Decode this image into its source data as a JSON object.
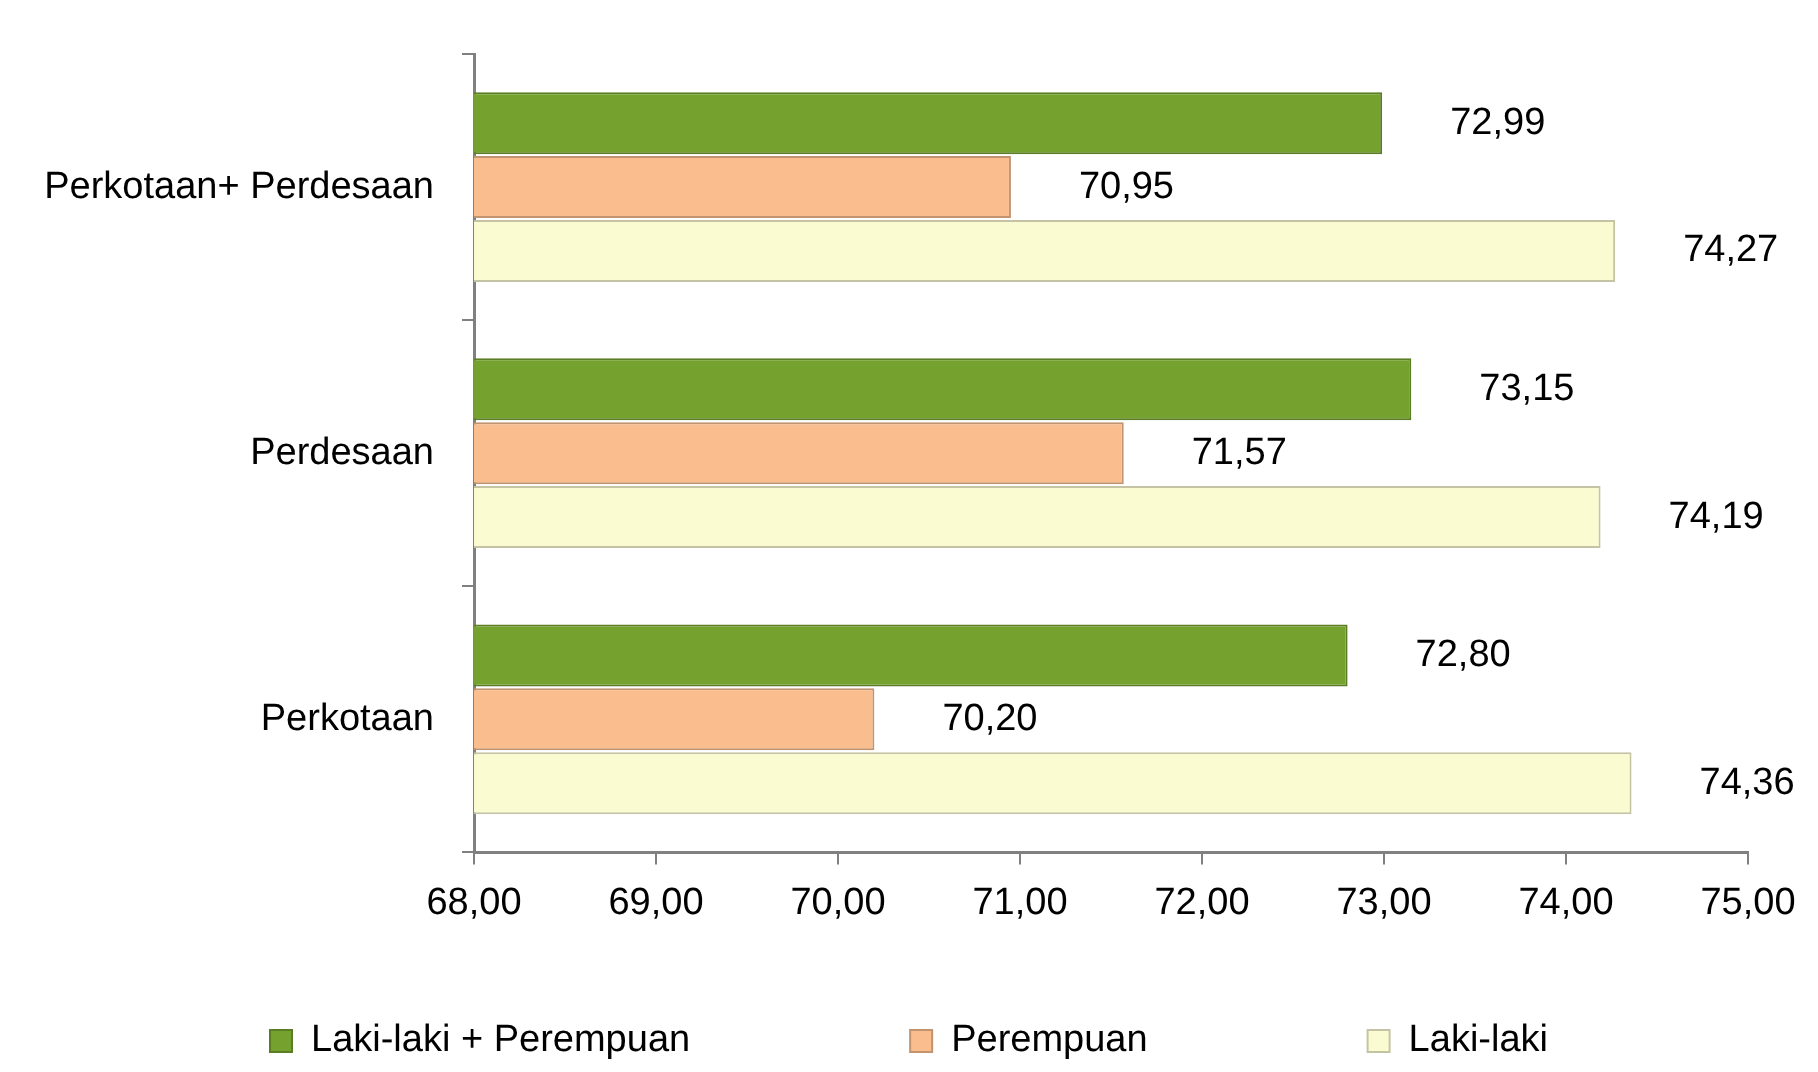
{
  "chart_data": {
    "type": "bar",
    "orientation": "horizontal",
    "categories": [
      "Perkotaan+ Perdesaan",
      "Perdesaan",
      "Perkotaan"
    ],
    "series": [
      {
        "name": "Laki-laki + Perempuan",
        "color": "#75a12f",
        "values": [
          72.99,
          73.15,
          72.8
        ],
        "value_labels": [
          "72,99",
          "73,15",
          "72,80"
        ]
      },
      {
        "name": "Perempuan",
        "color": "#f9bd8e",
        "values": [
          70.95,
          71.57,
          70.2
        ],
        "value_labels": [
          "70,95",
          "71,57",
          "70,20"
        ]
      },
      {
        "name": "Laki-laki",
        "color": "#fbfbd2",
        "values": [
          74.27,
          74.19,
          74.36
        ],
        "value_labels": [
          "74,27",
          "74,19",
          "74,36"
        ]
      }
    ],
    "xlim": [
      68,
      75
    ],
    "xticks": [
      {
        "value": 68,
        "label": "68,00"
      },
      {
        "value": 69,
        "label": "69,00"
      },
      {
        "value": 70,
        "label": "70,00"
      },
      {
        "value": 71,
        "label": "71,00"
      },
      {
        "value": 72,
        "label": "72,00"
      },
      {
        "value": 73,
        "label": "73,00"
      },
      {
        "value": 74,
        "label": "74,00"
      },
      {
        "value": 75,
        "label": "75,00"
      }
    ],
    "grid": false,
    "legend": "bottom"
  }
}
